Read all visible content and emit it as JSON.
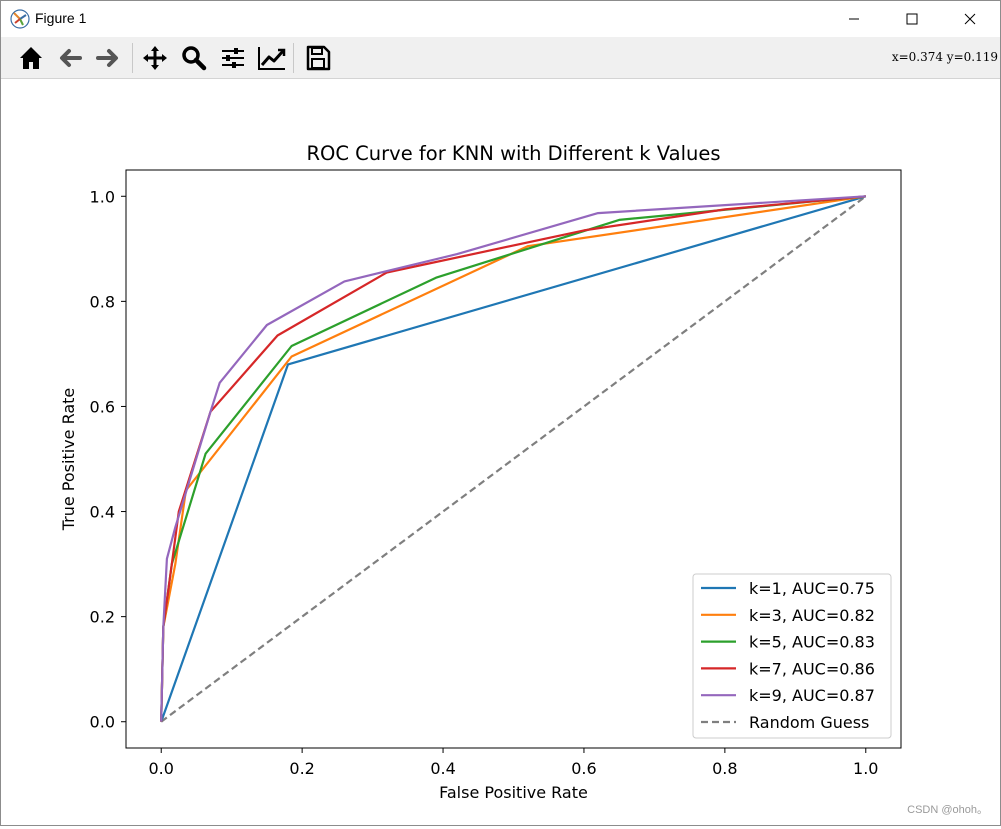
{
  "window": {
    "title": "Figure 1"
  },
  "toolbar": {
    "tools": [
      "home-icon",
      "back-arrow-icon",
      "forward-arrow-icon",
      "pan-icon",
      "zoom-icon",
      "configure-subplots-icon",
      "edit-axis-icon",
      "save-icon"
    ],
    "coords": "x=0.374  y=0.119"
  },
  "watermark": "CSDN @ohoh。",
  "colors": {
    "k1": "#1f77b4",
    "k3": "#ff7f0e",
    "k5": "#2ca02c",
    "k7": "#d62728",
    "k9": "#9467bd",
    "guess": "#7f7f7f"
  },
  "chart_data": {
    "type": "line",
    "title": "ROC Curve for KNN with Different k Values",
    "xlabel": "False Positive Rate",
    "ylabel": "True Positive Rate",
    "xlim": [
      -0.05,
      1.05
    ],
    "ylim": [
      -0.05,
      1.05
    ],
    "xticks": [
      "0.0",
      "0.2",
      "0.4",
      "0.6",
      "0.8",
      "1.0"
    ],
    "yticks": [
      "0.0",
      "0.2",
      "0.4",
      "0.6",
      "0.8",
      "1.0"
    ],
    "grid": false,
    "legend_position": "lower right",
    "series": [
      {
        "name": "k=1, AUC=0.75",
        "color": "#1f77b4",
        "dash": false,
        "x": [
          0.0,
          0.18,
          1.0
        ],
        "y": [
          0.0,
          0.68,
          1.0
        ]
      },
      {
        "name": "k=3, AUC=0.82",
        "color": "#ff7f0e",
        "dash": false,
        "x": [
          0.0,
          0.003,
          0.02,
          0.035,
          0.185,
          0.52,
          1.0
        ],
        "y": [
          0.0,
          0.18,
          0.3,
          0.44,
          0.695,
          0.905,
          1.0
        ]
      },
      {
        "name": "k=5, AUC=0.83",
        "color": "#2ca02c",
        "dash": false,
        "x": [
          0.0,
          0.003,
          0.015,
          0.063,
          0.185,
          0.39,
          0.52,
          0.65,
          1.0
        ],
        "y": [
          0.0,
          0.18,
          0.3,
          0.51,
          0.715,
          0.845,
          0.9,
          0.955,
          1.0
        ]
      },
      {
        "name": "k=7, AUC=0.86",
        "color": "#d62728",
        "dash": false,
        "x": [
          0.0,
          0.003,
          0.015,
          0.025,
          0.07,
          0.165,
          0.32,
          0.6,
          0.8,
          1.0
        ],
        "y": [
          0.0,
          0.18,
          0.3,
          0.4,
          0.59,
          0.735,
          0.855,
          0.935,
          0.975,
          1.0
        ]
      },
      {
        "name": "k=9, AUC=0.87",
        "color": "#9467bd",
        "dash": false,
        "x": [
          0.0,
          0.003,
          0.008,
          0.02,
          0.07,
          0.083,
          0.15,
          0.26,
          0.42,
          0.62,
          1.0
        ],
        "y": [
          0.0,
          0.18,
          0.31,
          0.37,
          0.59,
          0.645,
          0.755,
          0.838,
          0.89,
          0.968,
          1.0
        ]
      },
      {
        "name": "Random Guess",
        "color": "#7f7f7f",
        "dash": true,
        "x": [
          0.0,
          1.0
        ],
        "y": [
          0.0,
          1.0
        ]
      }
    ]
  }
}
